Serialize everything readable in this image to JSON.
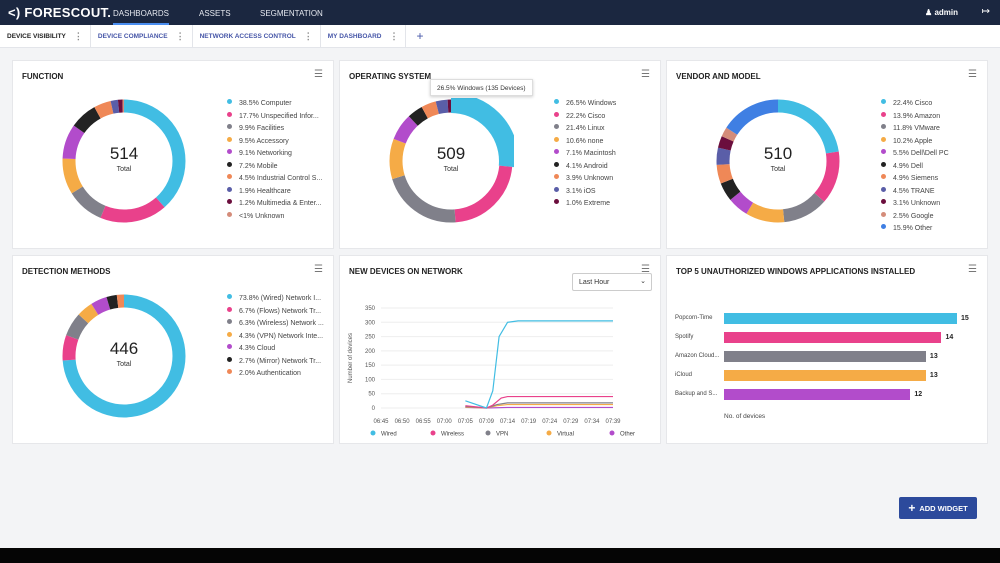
{
  "header": {
    "logo": "<) FORESCOUT.",
    "nav": [
      "DASHBOARDS",
      "ASSETS",
      "SEGMENTATION"
    ],
    "user": "admin"
  },
  "tabs": [
    "DEVICE VISIBILITY",
    "DEVICE COMPLIANCE",
    "NETWORK ACCESS CONTROL",
    "MY DASHBOARD"
  ],
  "widgets": {
    "function": {
      "title": "FUNCTION",
      "total": "514",
      "total_label": "Total",
      "items": [
        {
          "label": "38.5% Computer",
          "v": 38.5,
          "color": "#41bde3"
        },
        {
          "label": "17.7% Unspecified Infor...",
          "v": 17.7,
          "color": "#e9418b"
        },
        {
          "label": "9.9% Facilities",
          "v": 9.9,
          "color": "#80808a"
        },
        {
          "label": "9.5% Accessory",
          "v": 9.5,
          "color": "#f5ab46"
        },
        {
          "label": "9.1% Networking",
          "v": 9.1,
          "color": "#b24ccb"
        },
        {
          "label": "7.2% Mobile",
          "v": 7.2,
          "color": "#222222"
        },
        {
          "label": "4.5% Industrial Control S...",
          "v": 4.5,
          "color": "#ef8857"
        },
        {
          "label": "1.9% Healthcare",
          "v": 1.9,
          "color": "#5a5ea8"
        },
        {
          "label": "1.2% Multimedia & Enter...",
          "v": 1.2,
          "color": "#6b0e3d"
        },
        {
          "label": "<1% Unknown",
          "v": 0.5,
          "color": "#d48c7a"
        }
      ]
    },
    "os": {
      "title": "OPERATING SYSTEM",
      "total": "509",
      "total_label": "Total",
      "tooltip": "26.5% Windows (135 Devices)",
      "items": [
        {
          "label": "26.5% Windows",
          "v": 26.5,
          "color": "#41bde3"
        },
        {
          "label": "22.2% Cisco",
          "v": 22.2,
          "color": "#e9418b"
        },
        {
          "label": "21.4% Linux",
          "v": 21.4,
          "color": "#80808a"
        },
        {
          "label": "10.6% none",
          "v": 10.6,
          "color": "#f5ab46"
        },
        {
          "label": "7.1% Macintosh",
          "v": 7.1,
          "color": "#b24ccb"
        },
        {
          "label": "4.1% Android",
          "v": 4.1,
          "color": "#222222"
        },
        {
          "label": "3.9% Unknown",
          "v": 3.9,
          "color": "#ef8857"
        },
        {
          "label": "3.1% iOS",
          "v": 3.1,
          "color": "#5a5ea8"
        },
        {
          "label": "1.0% Extreme",
          "v": 1.0,
          "color": "#6b0e3d"
        }
      ]
    },
    "vendor": {
      "title": "VENDOR AND MODEL",
      "total": "510",
      "total_label": "Total",
      "items": [
        {
          "label": "22.4% Cisco",
          "v": 22.4,
          "color": "#41bde3"
        },
        {
          "label": "13.9% Amazon",
          "v": 13.9,
          "color": "#e9418b"
        },
        {
          "label": "11.8% VMware",
          "v": 11.8,
          "color": "#80808a"
        },
        {
          "label": "10.2% Apple",
          "v": 10.2,
          "color": "#f5ab46"
        },
        {
          "label": "5.5% Dell\\Dell PC",
          "v": 5.5,
          "color": "#b24ccb"
        },
        {
          "label": "4.9% Dell",
          "v": 4.9,
          "color": "#222222"
        },
        {
          "label": "4.9% Siemens",
          "v": 4.9,
          "color": "#ef8857"
        },
        {
          "label": "4.5% TRANE",
          "v": 4.5,
          "color": "#5a5ea8"
        },
        {
          "label": "3.1% Unknown",
          "v": 3.1,
          "color": "#6b0e3d"
        },
        {
          "label": "2.5% Google",
          "v": 2.5,
          "color": "#d48c7a"
        },
        {
          "label": "15.9% Other",
          "v": 15.9,
          "color": "#3f7fe3"
        }
      ]
    },
    "detection": {
      "title": "DETECTION METHODS",
      "total": "446",
      "total_label": "Total",
      "items": [
        {
          "label": "73.8% (Wired) Network I...",
          "v": 73.8,
          "color": "#41bde3"
        },
        {
          "label": "6.7% (Flows) Network Tr...",
          "v": 6.7,
          "color": "#e9418b"
        },
        {
          "label": "6.3% (Wireless) Network ...",
          "v": 6.3,
          "color": "#80808a"
        },
        {
          "label": "4.3% (VPN) Network Inte...",
          "v": 4.3,
          "color": "#f5ab46"
        },
        {
          "label": "4.3% Cloud",
          "v": 4.3,
          "color": "#b24ccb"
        },
        {
          "label": "2.7% (Mirror) Network Tr...",
          "v": 2.7,
          "color": "#222222"
        },
        {
          "label": "2.0% Authentication",
          "v": 2.0,
          "color": "#ef8857"
        }
      ]
    },
    "new_devices": {
      "title": "NEW DEVICES ON NETWORK",
      "range": "Last Hour"
    },
    "apps": {
      "title": "TOP 5 UNAUTHORIZED WINDOWS APPLICATIONS INSTALLED"
    }
  },
  "chart_data": [
    {
      "type": "line",
      "title": "NEW DEVICES ON NETWORK",
      "ylabel": "Number of devices",
      "ylim": [
        0,
        350
      ],
      "yticks": [
        "350",
        "300",
        "250",
        "200",
        "150",
        "100",
        "50",
        "0"
      ],
      "x": [
        "06:45",
        "06:50",
        "06:55",
        "07:00",
        "07:05",
        "07:09",
        "07:14",
        "07:19",
        "07:24",
        "07:29",
        "07:34",
        "07:39"
      ],
      "series": [
        {
          "name": "Wired",
          "color": "#41bde3",
          "points": [
            [
              4,
              25
            ],
            [
              5,
              0
            ],
            [
              5.3,
              60
            ],
            [
              5.6,
              250
            ],
            [
              6,
              300
            ],
            [
              6.5,
              305
            ],
            [
              11,
              305
            ]
          ]
        },
        {
          "name": "Wireless",
          "color": "#e9418b",
          "points": [
            [
              4,
              8
            ],
            [
              5,
              0
            ],
            [
              5.3,
              10
            ],
            [
              5.7,
              35
            ],
            [
              6,
              40
            ],
            [
              11,
              40
            ]
          ]
        },
        {
          "name": "VPN",
          "color": "#80808a",
          "points": [
            [
              4,
              5
            ],
            [
              5,
              0
            ],
            [
              5.5,
              12
            ],
            [
              6,
              18
            ],
            [
              11,
              18
            ]
          ]
        },
        {
          "name": "Virtual",
          "color": "#f5ab46",
          "points": [
            [
              4,
              3
            ],
            [
              5,
              0
            ],
            [
              5.5,
              8
            ],
            [
              6,
              12
            ],
            [
              11,
              12
            ]
          ]
        },
        {
          "name": "Other",
          "color": "#b24ccb",
          "points": [
            [
              4,
              2
            ],
            [
              5,
              0
            ],
            [
              6,
              2
            ],
            [
              11,
              2
            ]
          ]
        }
      ]
    },
    {
      "type": "bar",
      "title": "TOP 5 UNAUTHORIZED WINDOWS APPLICATIONS INSTALLED",
      "xlabel": "No. of devices",
      "xlim": [
        0,
        15
      ],
      "categories": [
        "Popcorn-Time",
        "Spotify",
        "Amazon Cloud...",
        "iCloud",
        "Backup and S..."
      ],
      "values": [
        15,
        14,
        13,
        13,
        12
      ],
      "colors": [
        "#41bde3",
        "#e9418b",
        "#80808a",
        "#f5ab46",
        "#b24ccb"
      ]
    }
  ],
  "add_widget": "ADD WIDGET"
}
